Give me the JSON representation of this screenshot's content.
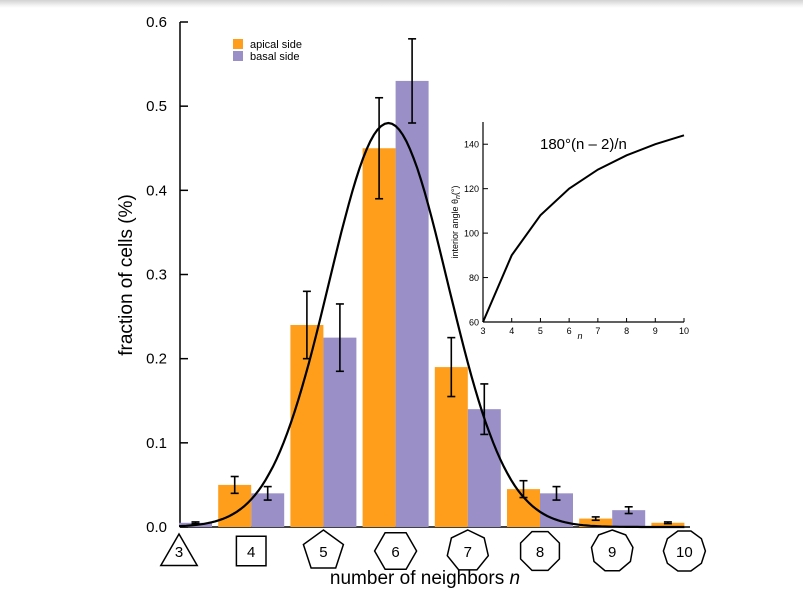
{
  "chart_data": [
    {
      "type": "bar",
      "title": "",
      "xlabel": "number of neighbors",
      "xlabel_var": "n",
      "ylabel": "fraction of cells (%)",
      "ylim": [
        0,
        0.6
      ],
      "yticks": [
        0.0,
        0.1,
        0.2,
        0.3,
        0.4,
        0.5,
        0.6
      ],
      "ytick_labels": [
        "0.0",
        "0.1",
        "0.2",
        "0.3",
        "0.4",
        "0.5",
        "0.6"
      ],
      "categories": [
        "3",
        "4",
        "5",
        "6",
        "7",
        "8",
        "9",
        "10"
      ],
      "colors": {
        "apical": "#ff9e1b",
        "basal": "#9a8fc7",
        "curve": "#000000"
      },
      "legend": {
        "placement": "top-left",
        "entries": [
          "apical side",
          "basal side"
        ]
      },
      "series": [
        {
          "name": "apical side",
          "values": [
            0.0,
            0.05,
            0.24,
            0.45,
            0.19,
            0.045,
            0.01,
            0.005
          ],
          "errors": [
            0.0,
            0.01,
            0.04,
            0.06,
            0.035,
            0.01,
            0.002,
            0.001
          ]
        },
        {
          "name": "basal side",
          "values": [
            0.005,
            0.04,
            0.225,
            0.53,
            0.14,
            0.04,
            0.02,
            0.0
          ],
          "errors": [
            0.001,
            0.008,
            0.04,
            0.05,
            0.03,
            0.008,
            0.004,
            0.0
          ]
        }
      ],
      "fit_curve": {
        "type": "gaussian",
        "peak": 0.48,
        "center": 5.9,
        "sigma": 0.82
      }
    },
    {
      "type": "line",
      "title": "180°(n – 2)/n",
      "xlabel": "n",
      "ylabel": "interior angle θ",
      "ylabel_sub": "n",
      "ylabel_unit": "(°)",
      "xlim": [
        3,
        10
      ],
      "ylim": [
        60,
        150
      ],
      "xticks": [
        3,
        4,
        5,
        6,
        7,
        8,
        9,
        10
      ],
      "yticks": [
        60,
        80,
        100,
        120,
        140
      ],
      "x": [
        3,
        4,
        5,
        6,
        7,
        8,
        9,
        10
      ],
      "y": [
        60,
        90,
        108,
        120,
        128.57,
        135,
        140,
        144
      ]
    }
  ]
}
